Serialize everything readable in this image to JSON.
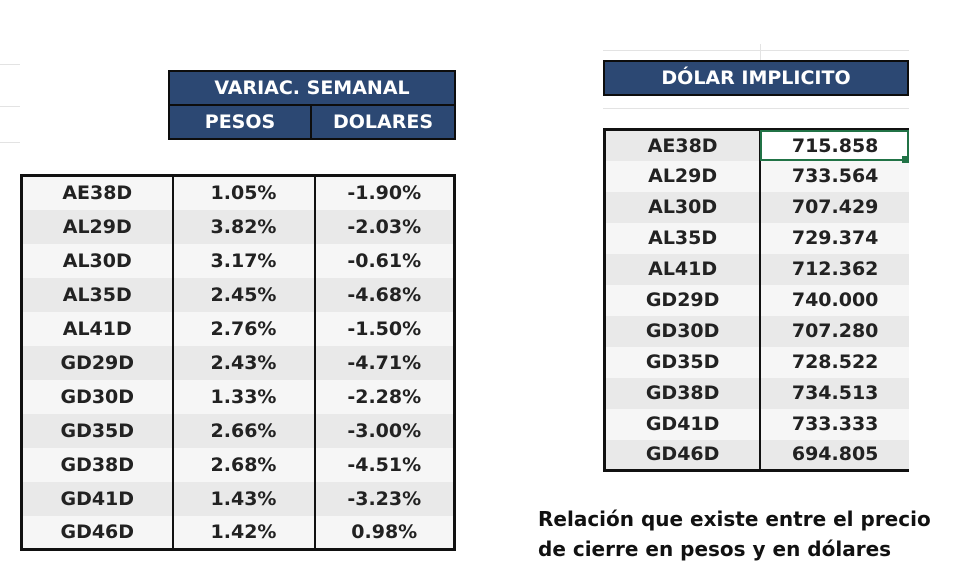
{
  "weekly_table": {
    "title": "VARIAC. SEMANAL",
    "col_pesos": "PESOS",
    "col_dolares": "DOLARES",
    "rows": [
      {
        "bond": "AE38D",
        "pesos": "1.05%",
        "dolares": "-1.90%"
      },
      {
        "bond": "AL29D",
        "pesos": "3.82%",
        "dolares": "-2.03%"
      },
      {
        "bond": "AL30D",
        "pesos": "3.17%",
        "dolares": "-0.61%"
      },
      {
        "bond": "AL35D",
        "pesos": "2.45%",
        "dolares": "-4.68%"
      },
      {
        "bond": "AL41D",
        "pesos": "2.76%",
        "dolares": "-1.50%"
      },
      {
        "bond": "GD29D",
        "pesos": "2.43%",
        "dolares": "-4.71%"
      },
      {
        "bond": "GD30D",
        "pesos": "1.33%",
        "dolares": "-2.28%"
      },
      {
        "bond": "GD35D",
        "pesos": "2.66%",
        "dolares": "-3.00%"
      },
      {
        "bond": "GD38D",
        "pesos": "2.68%",
        "dolares": "-4.51%"
      },
      {
        "bond": "GD41D",
        "pesos": "1.43%",
        "dolares": "-3.23%"
      },
      {
        "bond": "GD46D",
        "pesos": "1.42%",
        "dolares": "0.98%"
      }
    ]
  },
  "implicit_table": {
    "title": "DÓLAR IMPLICITO",
    "rows": [
      {
        "bond": "AE38D",
        "value": "715.858"
      },
      {
        "bond": "AL29D",
        "value": "733.564"
      },
      {
        "bond": "AL30D",
        "value": "707.429"
      },
      {
        "bond": "AL35D",
        "value": "729.374"
      },
      {
        "bond": "AL41D",
        "value": "712.362"
      },
      {
        "bond": "GD29D",
        "value": "740.000"
      },
      {
        "bond": "GD30D",
        "value": "707.280"
      },
      {
        "bond": "GD35D",
        "value": "728.522"
      },
      {
        "bond": "GD38D",
        "value": "734.513"
      },
      {
        "bond": "GD41D",
        "value": "733.333"
      },
      {
        "bond": "GD46D",
        "value": "694.805"
      }
    ]
  },
  "caption": {
    "line1": "Relación que existe entre el precio",
    "line2": "de cierre en pesos y en dólares"
  },
  "colors": {
    "header_bg": "#2c4873",
    "selection": "#217346"
  }
}
